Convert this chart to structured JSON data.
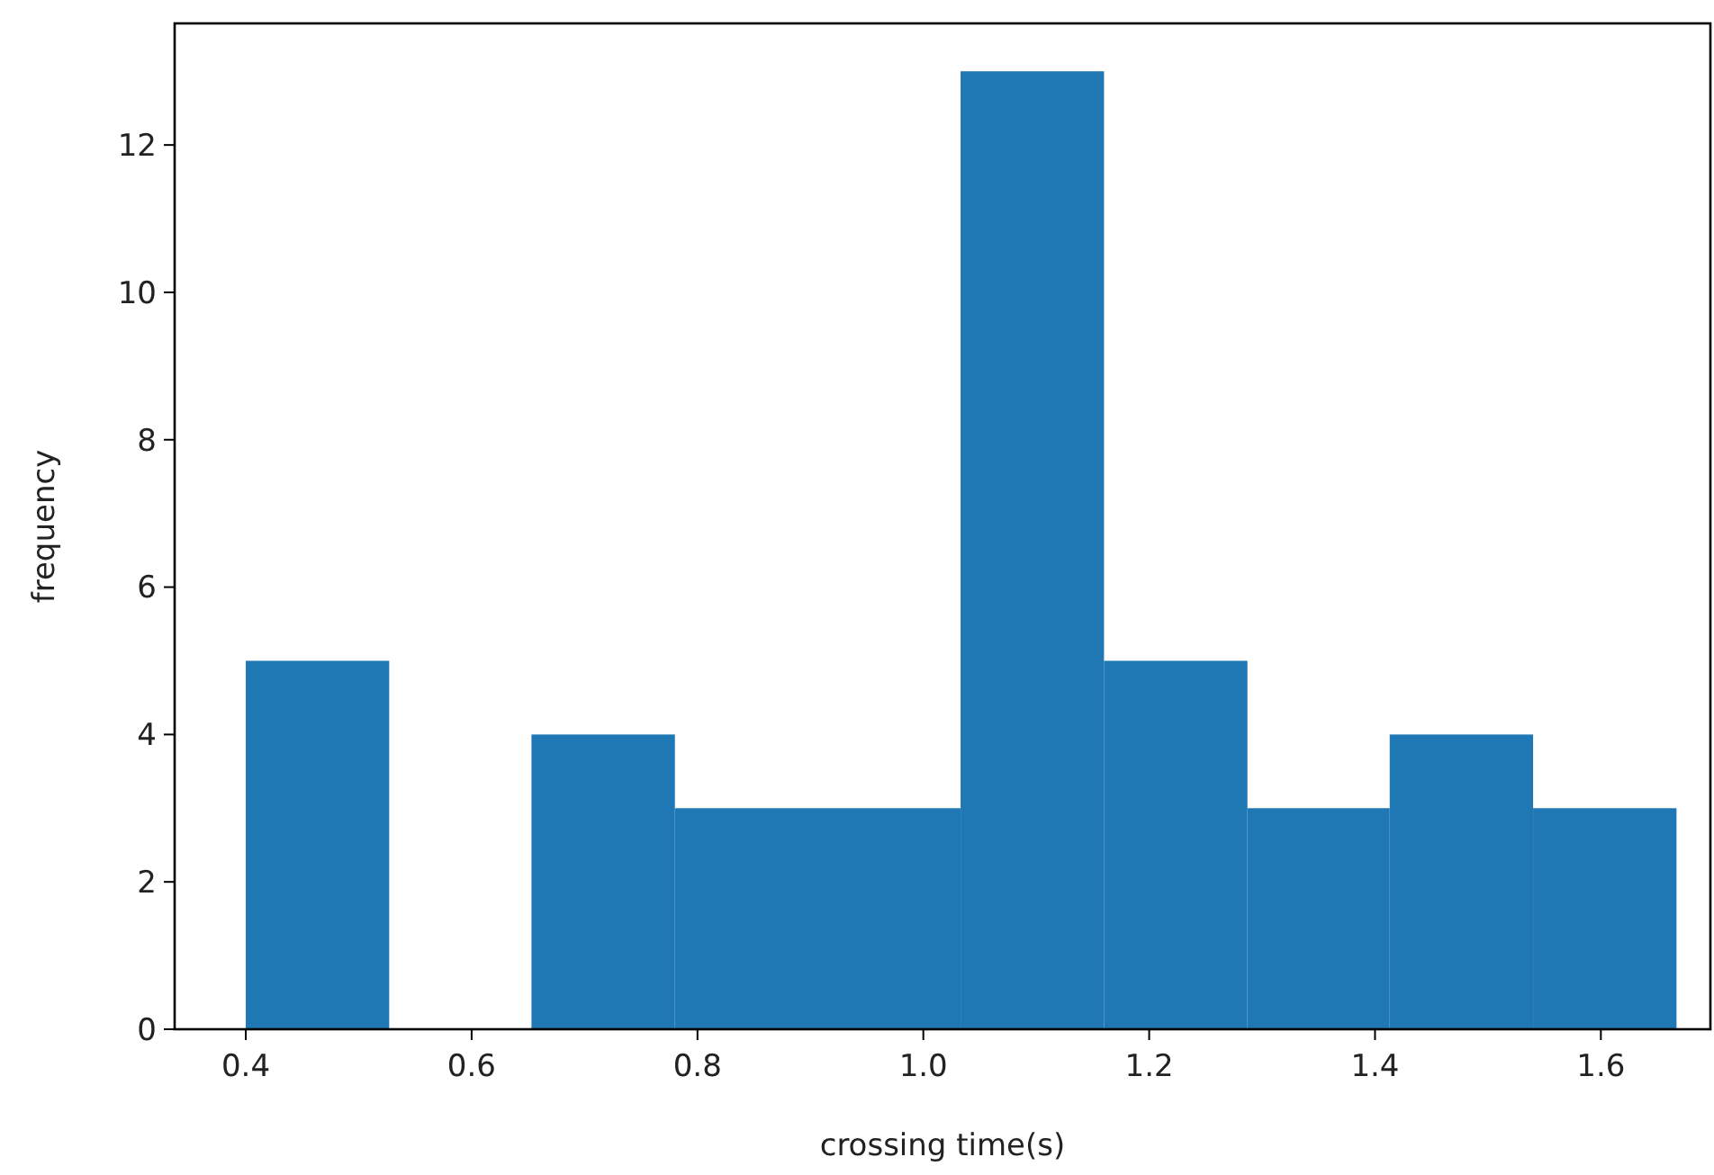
{
  "chart_data": {
    "type": "histogram",
    "xlabel": "crossing time(s)",
    "ylabel": "frequency",
    "bins": [
      0.4,
      0.527,
      0.653,
      0.78,
      0.907,
      1.033,
      1.16,
      1.287,
      1.413,
      1.54,
      1.667
    ],
    "values": [
      5,
      0,
      4,
      3,
      3,
      13,
      5,
      3,
      4,
      3
    ],
    "color": "#1f77b4",
    "xlim": [
      0.337,
      1.697
    ],
    "xticks": [
      0.4,
      0.6,
      0.8,
      {
        "value": 1.0,
        "label": "1.0"
      },
      1.2,
      1.4,
      1.6
    ],
    "ylim": [
      0,
      13.65
    ],
    "yticks": [
      0,
      2,
      4,
      6,
      8,
      10,
      12
    ],
    "grid": false
  }
}
